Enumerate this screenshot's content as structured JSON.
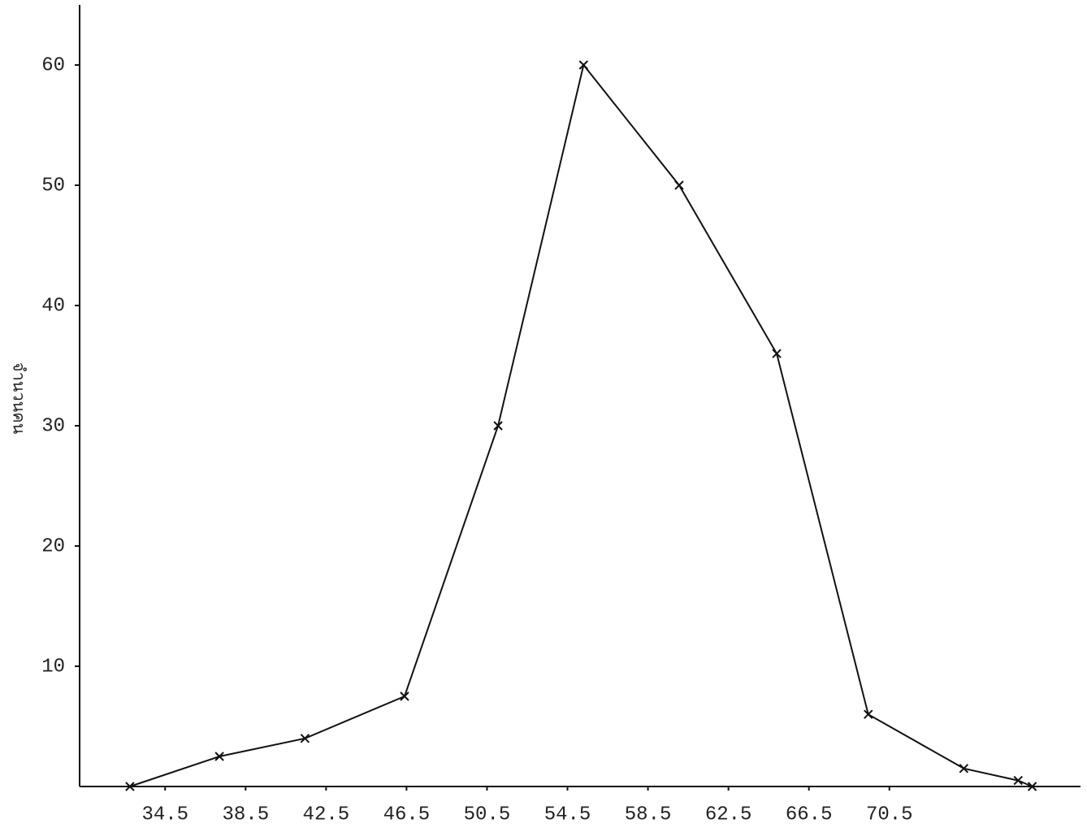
{
  "chart_data": {
    "type": "line",
    "ylabel": "จำนวนคน",
    "x": [
      32.75,
      37.2,
      41.45,
      46.4,
      51.05,
      55.3,
      60.05,
      64.9,
      69.45,
      74.2,
      76.9,
      77.6
    ],
    "series": [
      {
        "color": "#111111",
        "values": [
          0,
          2.5,
          4,
          7.5,
          30,
          60,
          50,
          36,
          6,
          1.5,
          0.5,
          0
        ]
      }
    ],
    "xlim": [
      30.25,
      80
    ],
    "xticks": [
      34.5,
      38.5,
      42.5,
      46.5,
      50.5,
      54.5,
      58.5,
      62.5,
      66.5,
      70.5
    ],
    "ylim": [
      0,
      65
    ],
    "yticks": [
      10,
      20,
      30,
      40,
      50,
      60
    ],
    "grid": false
  }
}
